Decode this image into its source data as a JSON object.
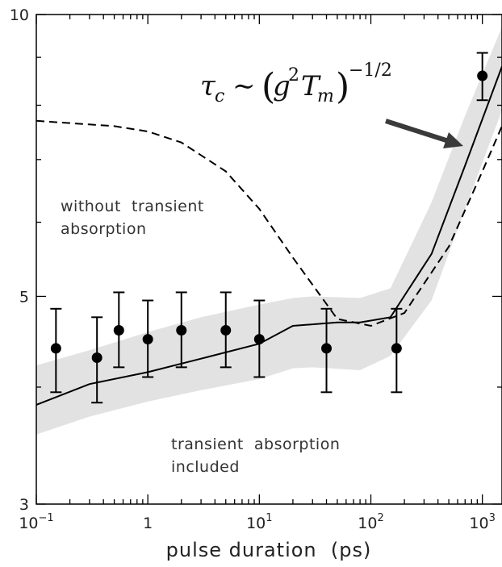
{
  "chart_data": {
    "type": "line",
    "xlabel": "pulse duration  (ps)",
    "ylabel": "",
    "xscale": "log",
    "yscale": "log",
    "xlim": [
      0.1,
      1500
    ],
    "ylim": [
      3,
      10
    ],
    "grid": false,
    "x_ticks": [
      {
        "value": 0.1,
        "base": "10",
        "exp": "−1"
      },
      {
        "value": 1,
        "base": "1",
        "exp": ""
      },
      {
        "value": 10,
        "base": "10",
        "exp": "1"
      },
      {
        "value": 100,
        "base": "10",
        "exp": "2"
      },
      {
        "value": 1000,
        "base": "10",
        "exp": "3"
      }
    ],
    "y_ticks": [
      {
        "value": 3,
        "label": "3"
      },
      {
        "value": 5,
        "label": "5"
      },
      {
        "value": 10,
        "label": "10"
      }
    ],
    "series": [
      {
        "style": "solid",
        "x": [
          0.1,
          0.3,
          1,
          3,
          10,
          20,
          50,
          80,
          150,
          350,
          700,
          1500
        ],
        "y": [
          3.83,
          4.03,
          4.15,
          4.29,
          4.45,
          4.65,
          4.69,
          4.69,
          4.75,
          5.55,
          6.9,
          8.8
        ]
      },
      {
        "style": "dashed",
        "x": [
          0.1,
          0.5,
          1,
          2,
          5,
          10,
          20,
          50,
          100,
          200,
          500,
          1000,
          1500
        ],
        "y": [
          7.7,
          7.6,
          7.5,
          7.3,
          6.8,
          6.2,
          5.5,
          4.73,
          4.65,
          4.8,
          5.65,
          6.8,
          7.6
        ]
      }
    ],
    "band": {
      "x": [
        0.1,
        0.3,
        1,
        3,
        10,
        20,
        30,
        80,
        150,
        350,
        700,
        1500
      ],
      "upper": [
        4.22,
        4.38,
        4.58,
        4.75,
        4.9,
        4.98,
        5.0,
        4.98,
        5.1,
        6.3,
        7.8,
        9.7
      ],
      "lower": [
        3.56,
        3.72,
        3.86,
        3.97,
        4.08,
        4.19,
        4.2,
        4.17,
        4.32,
        4.95,
        6.2,
        7.9
      ]
    },
    "points": [
      {
        "x": 0.15,
        "y": 4.4,
        "err_low": 3.95,
        "err_high": 4.85
      },
      {
        "x": 0.35,
        "y": 4.3,
        "err_low": 3.85,
        "err_high": 4.75
      },
      {
        "x": 0.55,
        "y": 4.6,
        "err_low": 4.2,
        "err_high": 5.05
      },
      {
        "x": 1.0,
        "y": 4.5,
        "err_low": 4.1,
        "err_high": 4.95
      },
      {
        "x": 2.0,
        "y": 4.6,
        "err_low": 4.2,
        "err_high": 5.05
      },
      {
        "x": 5.0,
        "y": 4.6,
        "err_low": 4.2,
        "err_high": 5.05
      },
      {
        "x": 10.0,
        "y": 4.5,
        "err_low": 4.1,
        "err_high": 4.95
      },
      {
        "x": 40.0,
        "y": 4.4,
        "err_low": 3.95,
        "err_high": 4.85
      },
      {
        "x": 170.0,
        "y": 4.4,
        "err_low": 3.95,
        "err_high": 4.85
      },
      {
        "x": 1000.0,
        "y": 8.6,
        "err_low": 8.1,
        "err_high": 9.1
      }
    ],
    "annotations": {
      "without_line1": "without  transient",
      "without_line2": "absorption",
      "included_line1": "transient  absorption",
      "included_line2": "included",
      "formula_tau": "τ",
      "formula_tau_sub": "c",
      "formula_sim": "∼",
      "formula_g": "g",
      "formula_g_sup": "2",
      "formula_T": "T",
      "formula_T_sub": "m",
      "formula_power": "−1/2"
    },
    "colors": {
      "band": "#e2e2e2",
      "line": "#000000",
      "arrow": "#3a3a3a"
    }
  }
}
